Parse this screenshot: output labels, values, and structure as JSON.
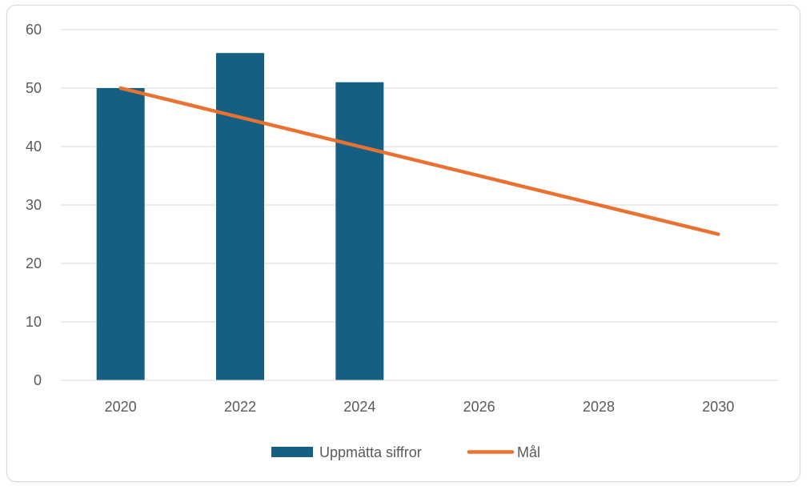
{
  "chart_data": {
    "type": "bar",
    "title": "",
    "xlabel": "",
    "ylabel": "",
    "categories": [
      "2020",
      "2022",
      "2024",
      "2026",
      "2028",
      "2030"
    ],
    "ylim": [
      0,
      60
    ],
    "yticks": [
      "0",
      "10",
      "20",
      "30",
      "40",
      "50",
      "60"
    ],
    "grid": true,
    "legend_position": "bottom",
    "series": [
      {
        "name": "Uppmätta siffror",
        "type": "bar",
        "color": "#156082",
        "values": [
          50,
          56,
          51,
          null,
          null,
          null
        ]
      },
      {
        "name": "Mål",
        "type": "line",
        "color": "#E97132",
        "values": [
          50,
          45,
          40,
          35,
          30,
          25
        ]
      }
    ]
  }
}
